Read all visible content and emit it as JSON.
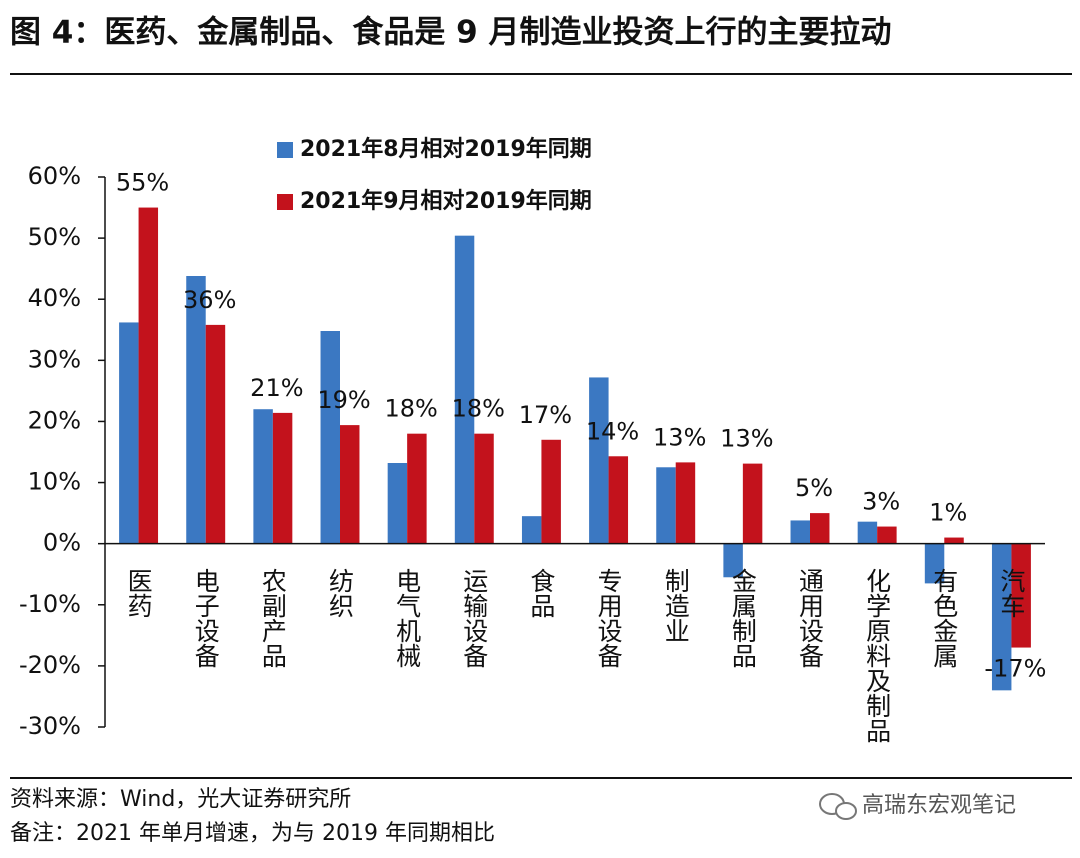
{
  "chart_data": {
    "type": "bar",
    "title": "图 4：医药、金属制品、食品是 9 月制造业投资上行的主要拉动",
    "categories": [
      "医药",
      "电子设备",
      "农副产品",
      "纺织",
      "电气机械",
      "运输设备",
      "食品",
      "专用设备",
      "制造业",
      "金属制品",
      "通用设备",
      "化学原料及制品",
      "有色金属",
      "汽车"
    ],
    "series": [
      {
        "name": "2021年8月相对2019年同期",
        "color": "#3b78c2",
        "values": [
          36.2,
          43.8,
          22,
          34.8,
          13.2,
          50.4,
          4.5,
          27.2,
          12.5,
          -5.5,
          3.8,
          3.6,
          -6.5,
          -24
        ]
      },
      {
        "name": "2021年9月相对2019年同期",
        "color": "#c3121c",
        "values": [
          55,
          35.8,
          21.4,
          19.4,
          18,
          18,
          17,
          14.3,
          13.3,
          13.1,
          5,
          2.8,
          1,
          -17
        ],
        "value_labels": [
          "55%",
          "36%",
          "21%",
          "19%",
          "18%",
          "18%",
          "17%",
          "14%",
          "13%",
          "13%",
          "5%",
          "3%",
          "1%",
          "-17%"
        ]
      }
    ],
    "ylim": [
      -30,
      60
    ],
    "yticks": [
      {
        "value": -30,
        "label": "-30%"
      },
      {
        "value": -20,
        "label": "-20%"
      },
      {
        "value": -10,
        "label": "-10%"
      },
      {
        "value": 0,
        "label": "0%"
      },
      {
        "value": 10,
        "label": "10%"
      },
      {
        "value": 20,
        "label": "20%"
      },
      {
        "value": 30,
        "label": "30%"
      },
      {
        "value": 40,
        "label": "40%"
      },
      {
        "value": 50,
        "label": "50%"
      },
      {
        "value": 60,
        "label": "60%"
      }
    ],
    "legend_position": "top"
  },
  "source": "资料来源：Wind，光大证券研究所",
  "note": "备注：2021 年单月增速，为与 2019 年同期相比",
  "watermark": "高瑞东宏观笔记"
}
